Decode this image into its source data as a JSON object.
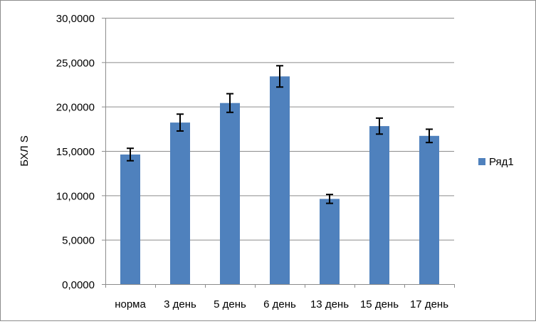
{
  "colors": {
    "bar": "#4f81bd",
    "gridline": "#8c8c8c",
    "axis": "#8c8c8c",
    "error_bar": "#000000"
  },
  "chart_data": {
    "type": "bar",
    "title": "",
    "xlabel": "",
    "ylabel": "БХЛ S",
    "ylim": [
      0,
      30
    ],
    "y_ticks": [
      "0,0000",
      "5,0000",
      "10,0000",
      "15,0000",
      "20,0000",
      "25,0000",
      "30,0000"
    ],
    "y_tick_values": [
      0,
      5,
      10,
      15,
      20,
      25,
      30
    ],
    "grid": true,
    "legend_position": "right",
    "categories": [
      "норма",
      "3 день",
      "5 день",
      "6 день",
      "13 день",
      "15 день",
      "17 день"
    ],
    "series": [
      {
        "name": "Ряд1",
        "values": [
          14.6,
          18.2,
          20.4,
          23.4,
          9.6,
          17.8,
          16.7
        ],
        "error": [
          0.7,
          0.95,
          1.05,
          1.2,
          0.5,
          0.9,
          0.75
        ]
      }
    ]
  }
}
